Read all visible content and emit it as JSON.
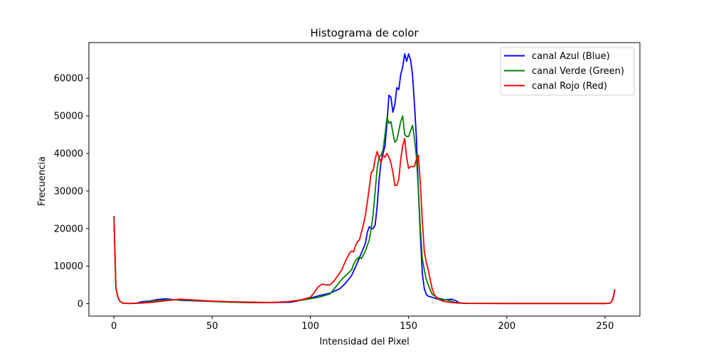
{
  "chart_data": {
    "type": "line",
    "title": "Histograma de color",
    "xlabel": "Intensidad del Pixel",
    "ylabel": "Frecuencia",
    "xlim": [
      -12.75,
      267.75
    ],
    "ylim": [
      -3300,
      69500
    ],
    "xticks": [
      0,
      50,
      100,
      150,
      200,
      250
    ],
    "yticks": [
      0,
      10000,
      20000,
      30000,
      40000,
      50000,
      60000
    ],
    "legend_position": "top-right",
    "series": [
      {
        "name": "canal Azul (Blue)",
        "color": "#0000ff",
        "points": [
          [
            0,
            23300
          ],
          [
            1,
            4200
          ],
          [
            2,
            1800
          ],
          [
            3,
            700
          ],
          [
            4,
            300
          ],
          [
            5,
            100
          ],
          [
            8,
            50
          ],
          [
            12,
            200
          ],
          [
            14,
            500
          ],
          [
            18,
            700
          ],
          [
            22,
            1100
          ],
          [
            26,
            1300
          ],
          [
            30,
            1100
          ],
          [
            34,
            900
          ],
          [
            40,
            800
          ],
          [
            50,
            600
          ],
          [
            60,
            400
          ],
          [
            70,
            300
          ],
          [
            80,
            300
          ],
          [
            90,
            400
          ],
          [
            95,
            900
          ],
          [
            100,
            1500
          ],
          [
            105,
            2200
          ],
          [
            110,
            2800
          ],
          [
            115,
            4000
          ],
          [
            118,
            5500
          ],
          [
            121,
            7500
          ],
          [
            124,
            11000
          ],
          [
            126,
            13500
          ],
          [
            128,
            16000
          ],
          [
            129,
            19000
          ],
          [
            130,
            20500
          ],
          [
            131,
            20000
          ],
          [
            132,
            20000
          ],
          [
            133,
            21000
          ],
          [
            134,
            26000
          ],
          [
            135,
            33000
          ],
          [
            136,
            38000
          ],
          [
            137,
            40000
          ],
          [
            138,
            42000
          ],
          [
            139,
            48000
          ],
          [
            140,
            55500
          ],
          [
            141,
            55000
          ],
          [
            142,
            51000
          ],
          [
            143,
            53000
          ],
          [
            144,
            57500
          ],
          [
            145,
            57000
          ],
          [
            146,
            61000
          ],
          [
            147,
            63000
          ],
          [
            148,
            66500
          ],
          [
            149,
            64500
          ],
          [
            150,
            66500
          ],
          [
            151,
            65000
          ],
          [
            152,
            61000
          ],
          [
            153,
            53000
          ],
          [
            154,
            44000
          ],
          [
            155,
            30000
          ],
          [
            156,
            18000
          ],
          [
            157,
            8000
          ],
          [
            158,
            4000
          ],
          [
            159,
            2500
          ],
          [
            160,
            2000
          ],
          [
            162,
            1700
          ],
          [
            165,
            1200
          ],
          [
            168,
            1000
          ],
          [
            172,
            1200
          ],
          [
            174,
            800
          ],
          [
            176,
            200
          ],
          [
            180,
            80
          ],
          [
            200,
            50
          ],
          [
            250,
            50
          ],
          [
            252,
            100
          ],
          [
            253,
            300
          ],
          [
            254,
            1200
          ],
          [
            255,
            3800
          ]
        ]
      },
      {
        "name": "canal Verde (Green)",
        "color": "#008000",
        "points": [
          [
            0,
            23300
          ],
          [
            1,
            4200
          ],
          [
            2,
            1800
          ],
          [
            3,
            700
          ],
          [
            4,
            300
          ],
          [
            5,
            100
          ],
          [
            8,
            50
          ],
          [
            12,
            150
          ],
          [
            15,
            300
          ],
          [
            20,
            700
          ],
          [
            26,
            1000
          ],
          [
            30,
            1000
          ],
          [
            34,
            1000
          ],
          [
            40,
            900
          ],
          [
            50,
            600
          ],
          [
            60,
            400
          ],
          [
            70,
            300
          ],
          [
            80,
            300
          ],
          [
            90,
            600
          ],
          [
            95,
            900
          ],
          [
            100,
            1300
          ],
          [
            105,
            1800
          ],
          [
            110,
            2600
          ],
          [
            113,
            4500
          ],
          [
            116,
            6500
          ],
          [
            119,
            8000
          ],
          [
            121,
            9000
          ],
          [
            122,
            10500
          ],
          [
            123,
            11500
          ],
          [
            125,
            12500
          ],
          [
            126,
            12000
          ],
          [
            128,
            14000
          ],
          [
            130,
            17000
          ],
          [
            131,
            20000
          ],
          [
            132,
            24000
          ],
          [
            133,
            30000
          ],
          [
            134,
            36000
          ],
          [
            135,
            39000
          ],
          [
            136,
            39500
          ],
          [
            137,
            41000
          ],
          [
            138,
            45000
          ],
          [
            139,
            49500
          ],
          [
            140,
            48000
          ],
          [
            141,
            48500
          ],
          [
            142,
            45500
          ],
          [
            143,
            43000
          ],
          [
            144,
            43500
          ],
          [
            145,
            46000
          ],
          [
            146,
            48500
          ],
          [
            147,
            50000
          ],
          [
            148,
            45000
          ],
          [
            149,
            44500
          ],
          [
            150,
            44500
          ],
          [
            151,
            46000
          ],
          [
            152,
            47500
          ],
          [
            153,
            44000
          ],
          [
            154,
            39000
          ],
          [
            155,
            30000
          ],
          [
            156,
            20000
          ],
          [
            157,
            12000
          ],
          [
            158,
            9000
          ],
          [
            159,
            6500
          ],
          [
            160,
            5000
          ],
          [
            162,
            2500
          ],
          [
            165,
            1500
          ],
          [
            170,
            900
          ],
          [
            174,
            300
          ],
          [
            178,
            100
          ],
          [
            200,
            50
          ],
          [
            250,
            50
          ],
          [
            252,
            100
          ],
          [
            253,
            300
          ],
          [
            254,
            1200
          ],
          [
            255,
            3800
          ]
        ]
      },
      {
        "name": "canal Rojo (Red)",
        "color": "#ff0000",
        "points": [
          [
            0,
            23300
          ],
          [
            1,
            4200
          ],
          [
            2,
            1800
          ],
          [
            3,
            700
          ],
          [
            4,
            300
          ],
          [
            5,
            100
          ],
          [
            8,
            50
          ],
          [
            12,
            100
          ],
          [
            18,
            300
          ],
          [
            25,
            700
          ],
          [
            30,
            1000
          ],
          [
            34,
            1200
          ],
          [
            40,
            1000
          ],
          [
            50,
            700
          ],
          [
            60,
            500
          ],
          [
            70,
            400
          ],
          [
            80,
            300
          ],
          [
            88,
            500
          ],
          [
            95,
            1000
          ],
          [
            100,
            1700
          ],
          [
            102,
            3000
          ],
          [
            104,
            4500
          ],
          [
            106,
            5200
          ],
          [
            108,
            5000
          ],
          [
            110,
            5000
          ],
          [
            112,
            6000
          ],
          [
            114,
            7500
          ],
          [
            116,
            9000
          ],
          [
            118,
            11500
          ],
          [
            120,
            13500
          ],
          [
            121,
            14000
          ],
          [
            122,
            13800
          ],
          [
            123,
            15500
          ],
          [
            124,
            16500
          ],
          [
            125,
            17000
          ],
          [
            127,
            21000
          ],
          [
            128,
            23500
          ],
          [
            129,
            27000
          ],
          [
            130,
            31000
          ],
          [
            131,
            35000
          ],
          [
            132,
            35500
          ],
          [
            133,
            38500
          ],
          [
            134,
            40500
          ],
          [
            135,
            39000
          ],
          [
            136,
            37500
          ],
          [
            137,
            39500
          ],
          [
            138,
            39000
          ],
          [
            139,
            40000
          ],
          [
            140,
            39000
          ],
          [
            141,
            37500
          ],
          [
            142,
            35000
          ],
          [
            143,
            31500
          ],
          [
            144,
            31500
          ],
          [
            145,
            33000
          ],
          [
            146,
            38500
          ],
          [
            147,
            42000
          ],
          [
            148,
            44000
          ],
          [
            149,
            39000
          ],
          [
            150,
            36000
          ],
          [
            151,
            36500
          ],
          [
            152,
            36500
          ],
          [
            153,
            36500
          ],
          [
            154,
            38500
          ],
          [
            155,
            39500
          ],
          [
            156,
            32000
          ],
          [
            157,
            22000
          ],
          [
            158,
            14000
          ],
          [
            159,
            11000
          ],
          [
            160,
            9000
          ],
          [
            161,
            6500
          ],
          [
            162,
            4000
          ],
          [
            163,
            2500
          ],
          [
            165,
            1200
          ],
          [
            168,
            600
          ],
          [
            172,
            300
          ],
          [
            176,
            150
          ],
          [
            180,
            80
          ],
          [
            200,
            50
          ],
          [
            250,
            50
          ],
          [
            252,
            100
          ],
          [
            253,
            300
          ],
          [
            254,
            1200
          ],
          [
            255,
            3800
          ]
        ]
      }
    ]
  }
}
